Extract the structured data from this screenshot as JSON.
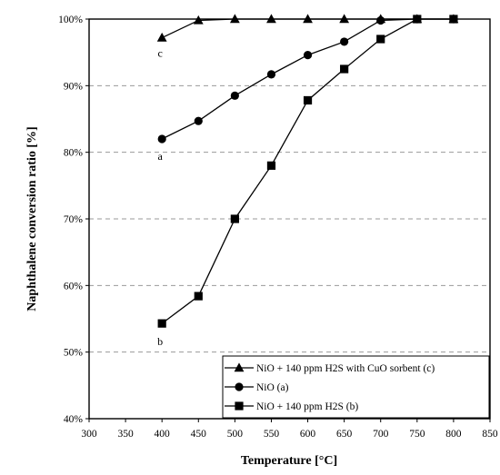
{
  "chart_data": {
    "type": "line",
    "xlabel": "Temperature [°C]",
    "ylabel": "Naphthalene conversion ratio  [%]",
    "xlim": [
      300,
      850
    ],
    "ylim": [
      40,
      100
    ],
    "x_ticks": [
      "300",
      "350",
      "400",
      "450",
      "500",
      "550",
      "600",
      "650",
      "700",
      "750",
      "800",
      "850"
    ],
    "y_ticks": [
      "40%",
      "50%",
      "60%",
      "70%",
      "80%",
      "90%",
      "100%"
    ],
    "grid": "horizontal dashed",
    "legend_position": "bottom-right",
    "series": [
      {
        "name": "NiO + 140 ppm H2S with CuO sorbent (c)",
        "marker": "triangle",
        "point_label": "c",
        "x": [
          400,
          450,
          500,
          550,
          600,
          650,
          700,
          750,
          800
        ],
        "y": [
          97.2,
          99.8,
          100,
          100,
          100,
          100,
          100,
          100,
          100
        ]
      },
      {
        "name": "NiO (a)",
        "marker": "circle",
        "point_label": "a",
        "x": [
          400,
          450,
          500,
          550,
          600,
          650,
          700,
          750,
          800
        ],
        "y": [
          82.0,
          84.7,
          88.5,
          91.7,
          94.6,
          96.6,
          99.8,
          100,
          100
        ]
      },
      {
        "name": "NiO + 140 ppm H2S (b)",
        "marker": "square",
        "point_label": "b",
        "x": [
          400,
          450,
          500,
          550,
          600,
          650,
          700,
          750,
          800
        ],
        "y": [
          54.3,
          58.4,
          70.0,
          78.0,
          87.8,
          92.5,
          97.0,
          100,
          100
        ]
      }
    ]
  }
}
